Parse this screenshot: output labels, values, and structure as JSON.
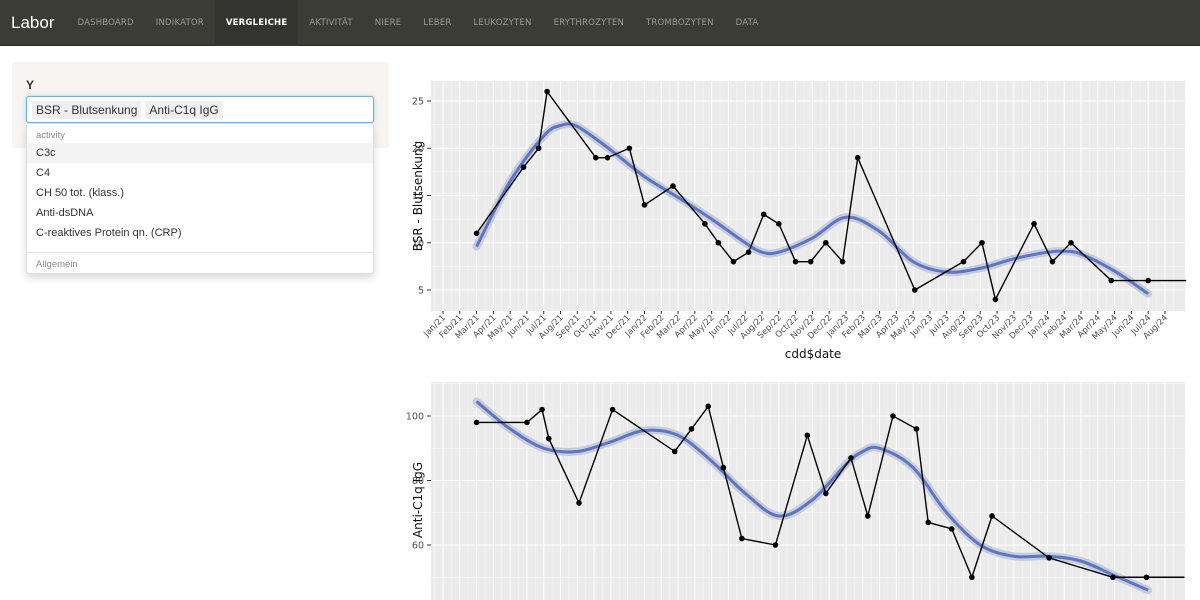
{
  "navbar": {
    "brand": "Labor",
    "items": [
      {
        "label": "DASHBOARD",
        "active": false
      },
      {
        "label": "INDIKATOR",
        "active": false
      },
      {
        "label": "VERGLEICHE",
        "active": true
      },
      {
        "label": "AKTIVITÄT",
        "active": false
      },
      {
        "label": "NIERE",
        "active": false
      },
      {
        "label": "LEBER",
        "active": false
      },
      {
        "label": "LEUKOZYTEN",
        "active": false
      },
      {
        "label": "ERYTHROZYTEN",
        "active": false
      },
      {
        "label": "TROMBOZYTEN",
        "active": false
      },
      {
        "label": "DATA",
        "active": false
      }
    ]
  },
  "sidebar": {
    "y_label": "Y",
    "selected": [
      "BSR - Blutsenkung",
      "Anti-C1q IgG"
    ],
    "dropdown": {
      "group1": "activity",
      "options": [
        "C3c",
        "C4",
        "CH 50 tot. (klass.)",
        "Anti-dsDNA",
        "C-reaktives Protein qn. (CRP)"
      ],
      "hovered_index": 0,
      "group2": "Allgemein"
    }
  },
  "colors": {
    "navbar_bg": "#3c3c37",
    "panel_bg": "#ebebeb",
    "smooth_line": "#5a76c9",
    "data_line": "#000000",
    "focus_border": "#66afe9"
  },
  "chart_data": [
    {
      "type": "line",
      "title": "",
      "xlabel": "cdd$date",
      "ylabel": "BSR - Blutsenkung",
      "ylim": [
        3,
        27
      ],
      "yticks": [
        5,
        10,
        15,
        20,
        25
      ],
      "xticks": [
        "Jan/21",
        "Feb/21",
        "Mar/21",
        "Apr/21",
        "May/21",
        "Jun/21",
        "Jul/21",
        "Aug/21",
        "Sep/21",
        "Oct/21",
        "Nov/21",
        "Dec/21",
        "Jan/22",
        "Feb/22",
        "Mar/22",
        "Apr/22",
        "May/22",
        "Jun/22",
        "Jul/22",
        "Aug/22",
        "Sep/22",
        "Oct/22",
        "Nov/22",
        "Dec/22",
        "Jan/23",
        "Feb/23",
        "Mar/23",
        "Apr/23",
        "May/23",
        "Jun/23",
        "Jul/23",
        "Aug/23",
        "Sep/23",
        "Oct/23",
        "Nov/23",
        "Dec/23",
        "Jan/24",
        "Feb/24",
        "Mar/24",
        "Apr/24",
        "May/24",
        "Jun/24",
        "Jul/24",
        "Aug/24"
      ],
      "grid": true,
      "series": [
        {
          "name": "observed",
          "x_month_index": [
            2.0,
            4.8,
            5.7,
            6.2,
            9.1,
            9.8,
            11.1,
            12.0,
            13.7,
            15.6,
            16.4,
            17.3,
            18.2,
            19.1,
            20.0,
            21.0,
            21.9,
            22.8,
            23.8,
            24.7,
            28.1,
            31.0,
            32.1,
            32.9,
            35.2,
            36.3,
            37.4,
            39.8,
            42.0
          ],
          "values": [
            11,
            18,
            20,
            26,
            19,
            19,
            20,
            14,
            16,
            12,
            10,
            8,
            9,
            13,
            12,
            8,
            8,
            10,
            8,
            19,
            5,
            8,
            10,
            4,
            12,
            8,
            10,
            6,
            6
          ]
        },
        {
          "name": "loess smooth",
          "x_month_index": [
            2,
            4,
            6,
            7,
            8,
            10,
            12,
            14,
            16,
            18,
            19,
            20,
            22,
            24,
            26,
            28,
            30,
            32,
            34,
            36,
            37,
            38,
            40,
            42
          ],
          "values": [
            9.6,
            16.5,
            21.3,
            22.4,
            22.3,
            19.8,
            17.0,
            14.8,
            12.5,
            10.0,
            9.0,
            9.0,
            10.5,
            12.7,
            11.2,
            8.0,
            6.9,
            7.3,
            8.3,
            9.0,
            9.1,
            8.8,
            7.0,
            4.6
          ]
        }
      ]
    },
    {
      "type": "line",
      "title": "",
      "xlabel": "",
      "ylabel": "Anti-C1q IgG",
      "ylim": [
        45,
        110
      ],
      "yticks": [
        60,
        80,
        100
      ],
      "grid": true,
      "series": [
        {
          "name": "observed",
          "x_month_index": [
            2.0,
            5.0,
            5.9,
            6.3,
            8.1,
            10.1,
            13.8,
            14.8,
            15.8,
            16.7,
            17.8,
            19.8,
            21.7,
            22.8,
            24.3,
            25.3,
            26.8,
            28.2,
            28.9,
            30.3,
            31.5,
            32.7,
            36.1,
            39.9,
            41.9
          ],
          "values": [
            98,
            98,
            102,
            93,
            73,
            102,
            89,
            96,
            103,
            84,
            62,
            60,
            94,
            76,
            87,
            69,
            100,
            96,
            67,
            65,
            50,
            69,
            56,
            50,
            50
          ]
        },
        {
          "name": "loess smooth",
          "x_month_index": [
            2,
            4,
            6,
            8,
            10,
            12,
            14,
            16,
            18,
            20,
            22,
            24,
            25,
            26,
            28,
            30,
            32,
            34,
            36,
            38,
            40,
            42
          ],
          "values": [
            104.5,
            96,
            90,
            89,
            92,
            95.5,
            94,
            86,
            76,
            69,
            74,
            85,
            89,
            90,
            84,
            70,
            60,
            56.5,
            56.5,
            55,
            50.5,
            46
          ]
        }
      ]
    }
  ]
}
